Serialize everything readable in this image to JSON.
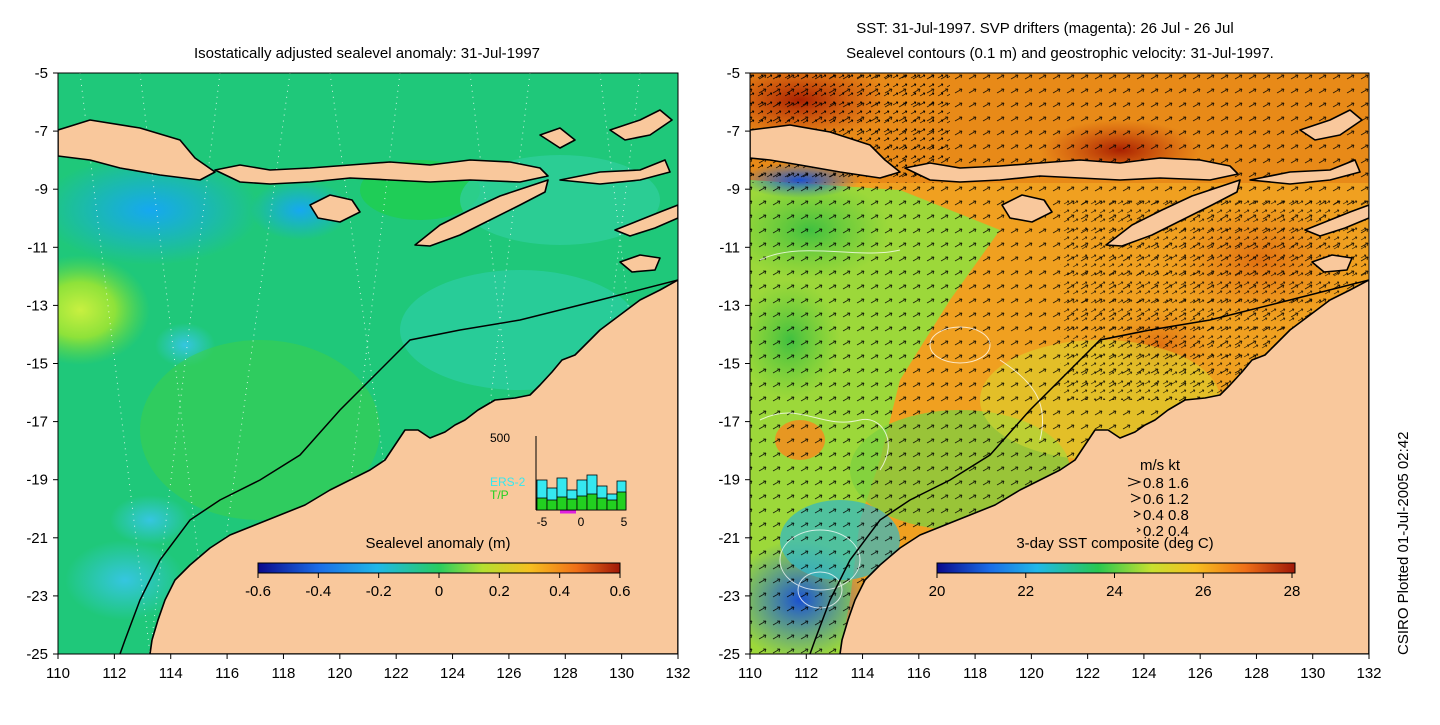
{
  "left_panel": {
    "title": "Isostatically adjusted sealevel anomaly: 31-Jul-1997",
    "colorbar_label": "Sealevel anomaly (m)",
    "colorbar_ticks": [
      "-0.6",
      "-0.4",
      "-0.2",
      "0",
      "0.2",
      "0.4",
      "0.6"
    ],
    "inset": {
      "ymax_label": "500",
      "legend": [
        "ERS-2",
        "T/P"
      ],
      "xticks": [
        "-5",
        "0",
        "5"
      ]
    }
  },
  "right_panel": {
    "title_line1": "SST: 31-Jul-1997. SVP drifters (magenta): 26 Jul - 26 Jul",
    "title_line2": "Sealevel contours (0.1 m) and geostrophic velocity: 31-Jul-1997.",
    "colorbar_label": "3-day SST composite (deg C)",
    "colorbar_ticks": [
      "20",
      "22",
      "24",
      "26",
      "28"
    ],
    "velocity_legend": {
      "header": "m/s  kt",
      "rows": [
        "0.8  1.6",
        "0.6  1.2",
        "0.4  0.8",
        "0.2  0.4"
      ]
    }
  },
  "axes": {
    "lon_ticks": [
      "110",
      "112",
      "114",
      "116",
      "118",
      "120",
      "122",
      "124",
      "126",
      "128",
      "130",
      "132"
    ],
    "lat_ticks": [
      "-5",
      "-7",
      "-9",
      "-11",
      "-13",
      "-15",
      "-17",
      "-19",
      "-21",
      "-23",
      "-25"
    ]
  },
  "credit": "CSIRO Plotted 01-Jul-2005 02:42",
  "colors": {
    "land": "#f9c89c",
    "sla_base": "#1fc87a",
    "sst_base": "#f0a020"
  }
}
